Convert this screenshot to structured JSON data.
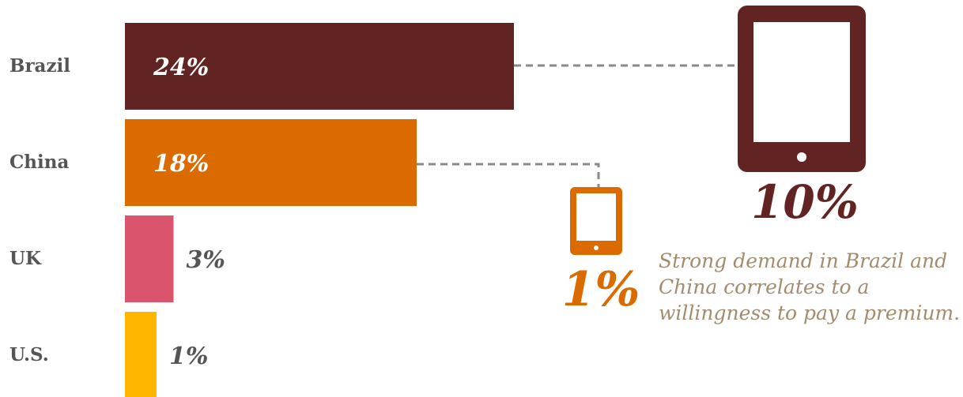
{
  "chart_data": {
    "type": "bar",
    "orientation": "horizontal",
    "categories": [
      "Brazil",
      "China",
      "UK",
      "U.S."
    ],
    "values": [
      24,
      18,
      3,
      1
    ],
    "value_labels": [
      "24%",
      "18%",
      "3%",
      "1%"
    ],
    "unit": "%",
    "colors": [
      "#622422",
      "#db6a00",
      "#d9546c",
      "#ffb600"
    ],
    "value_label_colors": [
      "#ffffff",
      "#ffffff",
      "#555555",
      "#555555"
    ],
    "callouts": [
      {
        "value": "10%",
        "icon": "tablet-large-icon",
        "color": "#622422"
      },
      {
        "value": "1%",
        "icon": "tablet-small-icon",
        "color": "#db6a00"
      }
    ],
    "annotation": "Strong demand in Brazil and China correlates to a willingness to pay a premium.",
    "annotation_color": "#a38c6e",
    "grid": false,
    "legend": "none"
  }
}
